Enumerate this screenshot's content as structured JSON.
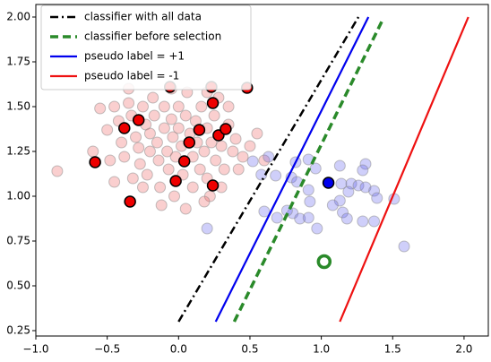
{
  "chart_data": {
    "type": "scatter",
    "xlim": [
      -1.0,
      2.17
    ],
    "ylim": [
      0.22,
      2.07
    ],
    "xticks": [
      {
        "value": -1.0,
        "label": "−1.0"
      },
      {
        "value": -0.5,
        "label": "−0.5"
      },
      {
        "value": 0.0,
        "label": "0.0"
      },
      0.5,
      {
        "value": 1.0,
        "label": "1.0"
      },
      1.5,
      {
        "value": 2.0,
        "label": "2.0"
      }
    ],
    "yticks": [
      0.25,
      {
        "value": 0.5,
        "label": "0.50"
      },
      0.75,
      {
        "value": 1.0,
        "label": "1.00"
      },
      1.25,
      {
        "value": 1.5,
        "label": "1.50"
      },
      1.75,
      {
        "value": 2.0,
        "label": "2.00"
      }
    ],
    "legend": "upper left",
    "lines": [
      {
        "name": "classifier with all data",
        "color": "#000000",
        "style": "dashdot",
        "x": [
          0.0,
          1.26
        ],
        "y": [
          0.3,
          2.0
        ]
      },
      {
        "name": "classifier before selection",
        "color": "#2a8a2a",
        "style": "dashed",
        "x": [
          0.39,
          1.43
        ],
        "y": [
          0.3,
          1.985
        ]
      },
      {
        "name": "pseudo label = +1",
        "color": "#0000ee",
        "style": "solid",
        "x": [
          0.26,
          1.33
        ],
        "y": [
          0.3,
          2.0
        ]
      },
      {
        "name": "pseudo label = -1",
        "color": "#ee1111",
        "style": "solid",
        "x": [
          1.13,
          2.03
        ],
        "y": [
          0.3,
          2.0
        ]
      }
    ],
    "points": [
      {
        "color": "#f06060",
        "alpha": 0.3,
        "edge": "#888888",
        "marker": "dot",
        "x": [
          -0.85,
          -0.55,
          -0.5,
          -0.45,
          -0.42,
          -0.4,
          -0.38,
          -0.35,
          -0.33,
          -0.3,
          -0.28,
          -0.27,
          -0.25,
          -0.23,
          -0.22,
          -0.2,
          -0.2,
          -0.18,
          -0.17,
          -0.15,
          -0.14,
          -0.13,
          -0.1,
          -0.1,
          -0.08,
          -0.07,
          -0.05,
          -0.04,
          -0.03,
          -0.02,
          0.0,
          0.0,
          0.02,
          0.03,
          0.05,
          0.06,
          0.08,
          0.1,
          0.1,
          0.12,
          0.13,
          0.15,
          0.16,
          0.18,
          0.2,
          0.2,
          0.22,
          0.23,
          0.25,
          0.26,
          0.28,
          0.3,
          0.32,
          0.35,
          0.38,
          0.4,
          0.42,
          0.45,
          0.5,
          -0.6,
          -0.48,
          -0.32,
          -0.25,
          -0.45,
          -0.12,
          0.05,
          0.18,
          0.3,
          -0.35,
          -0.05,
          0.2,
          0.35,
          0.6,
          0.55
        ],
        "y": [
          1.14,
          1.49,
          1.37,
          1.5,
          1.42,
          1.3,
          1.22,
          1.52,
          1.45,
          1.33,
          1.27,
          1.18,
          1.5,
          1.4,
          1.12,
          1.35,
          1.25,
          1.55,
          1.45,
          1.3,
          1.2,
          1.05,
          1.38,
          1.5,
          1.25,
          1.15,
          1.43,
          1.33,
          1.0,
          1.22,
          1.5,
          1.38,
          1.28,
          1.12,
          1.45,
          1.58,
          1.35,
          1.22,
          1.05,
          1.42,
          1.3,
          1.15,
          1.5,
          1.25,
          1.38,
          1.1,
          1.0,
          1.3,
          1.45,
          1.2,
          1.55,
          1.28,
          1.15,
          1.4,
          1.25,
          1.32,
          1.15,
          1.22,
          1.28,
          1.25,
          1.2,
          1.1,
          1.05,
          1.08,
          0.95,
          0.93,
          0.97,
          1.05,
          1.6,
          1.6,
          1.58,
          1.5,
          1.2,
          1.35
        ]
      },
      {
        "color": "#6060f0",
        "alpha": 0.3,
        "edge": "#888888",
        "marker": "dot",
        "x": [
          0.91,
          0.96,
          0.82,
          0.79,
          0.83,
          0.91,
          0.92,
          1.13,
          1.31,
          1.14,
          1.21,
          1.26,
          1.31,
          1.37,
          1.19,
          1.13,
          1.39,
          1.15,
          1.18,
          1.29,
          1.37,
          1.51,
          0.8,
          0.76,
          0.69,
          0.6,
          0.85,
          0.91,
          1.08,
          0.97,
          0.58,
          0.52,
          0.63,
          1.29,
          1.58,
          0.2,
          0.68
        ],
        "y": [
          1.205,
          1.155,
          1.19,
          1.105,
          1.08,
          1.035,
          0.97,
          1.17,
          1.18,
          1.07,
          1.07,
          1.06,
          1.05,
          1.03,
          1.025,
          0.975,
          0.99,
          0.91,
          0.875,
          0.86,
          0.86,
          0.985,
          0.905,
          0.92,
          0.88,
          0.915,
          0.875,
          0.88,
          0.95,
          0.82,
          1.12,
          1.195,
          1.22,
          1.145,
          0.72,
          0.82,
          1.115
        ]
      },
      {
        "color": "#ee0000",
        "alpha": 1,
        "edge": "#000000",
        "marker": "dot",
        "x": [
          -0.06,
          0.23,
          0.48,
          0.24,
          -0.28,
          -0.38,
          0.145,
          0.075,
          0.28,
          0.33,
          0.04,
          -0.585,
          -0.02,
          0.24,
          -0.34
        ],
        "y": [
          1.61,
          1.61,
          1.605,
          1.52,
          1.425,
          1.38,
          1.37,
          1.3,
          1.34,
          1.375,
          1.195,
          1.19,
          1.085,
          1.06,
          0.97
        ]
      },
      {
        "color": "#0000ee",
        "alpha": 1,
        "edge": "#000000",
        "marker": "dot",
        "x": [
          1.05
        ],
        "y": [
          1.075
        ]
      },
      {
        "color": "#2a8a2a",
        "alpha": 1,
        "edge": "#2a8a2a",
        "marker": "ring",
        "x": [
          1.02
        ],
        "y": [
          0.635
        ]
      }
    ]
  }
}
